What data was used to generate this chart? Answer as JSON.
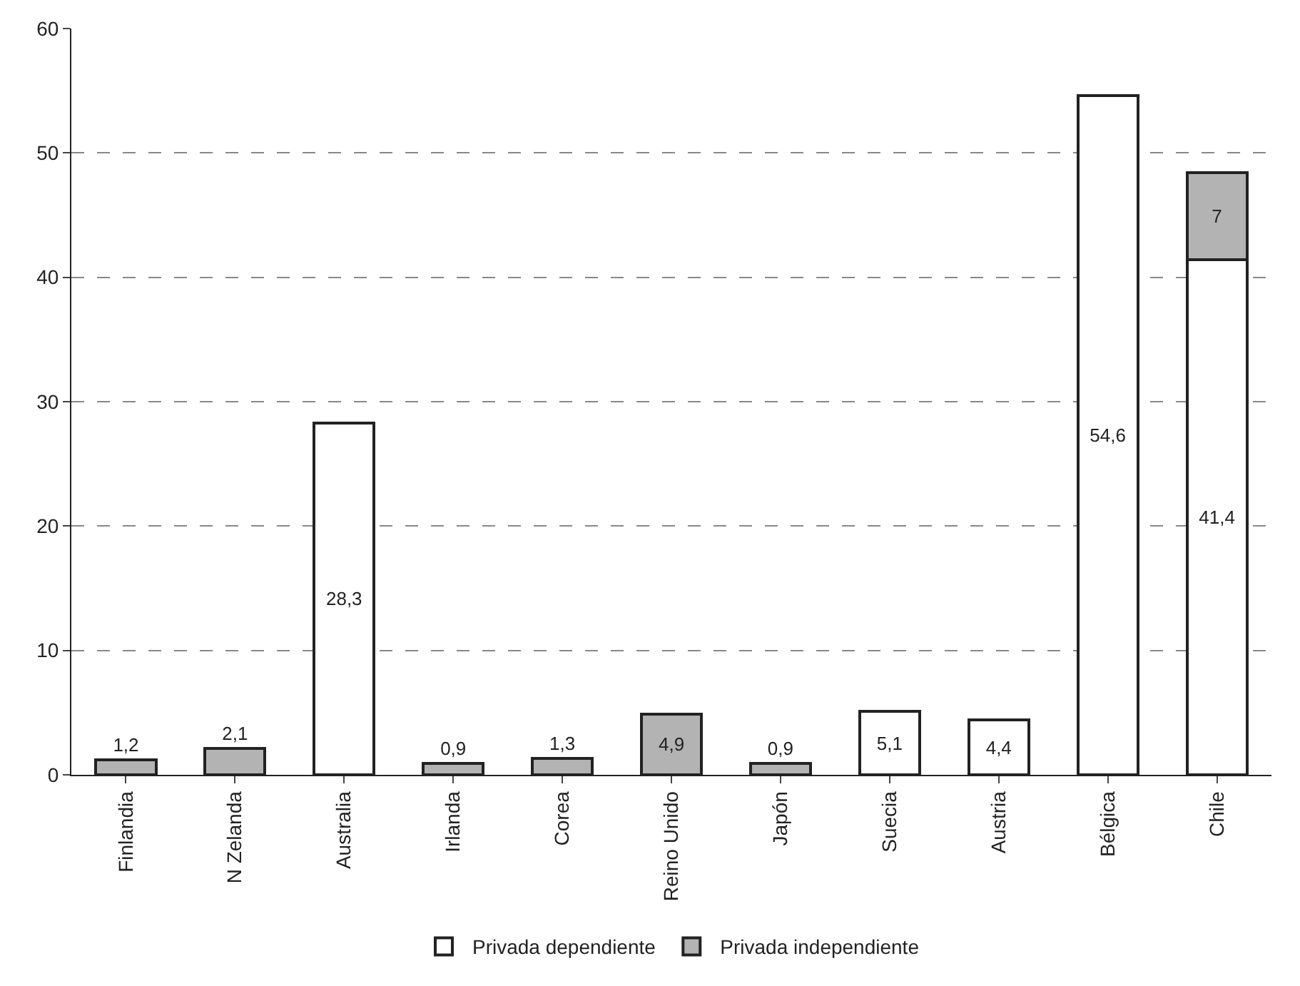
{
  "chart_data": {
    "type": "bar",
    "stacked": true,
    "categories": [
      "Finlandia",
      "N Zelanda",
      "Australia",
      "Irlanda",
      "Corea",
      "Reino Unido",
      "Japón",
      "Suecia",
      "Austria",
      "Bélgica",
      "Chile"
    ],
    "series": [
      {
        "name": "Privada dependiente",
        "color": "#ffffff",
        "values": [
          null,
          null,
          28.3,
          null,
          null,
          null,
          null,
          5.1,
          4.4,
          54.6,
          41.4
        ],
        "value_labels": [
          null,
          null,
          "28,3",
          null,
          null,
          null,
          null,
          "5,1",
          "4,4",
          "54,6",
          "41,4"
        ]
      },
      {
        "name": "Privada independiente",
        "color": "#b3b3b3",
        "values": [
          1.2,
          2.1,
          null,
          0.9,
          1.3,
          4.9,
          0.9,
          null,
          null,
          null,
          7
        ],
        "value_labels": [
          "1,2",
          "2,1",
          null,
          "0,9",
          "1,3",
          "4,9",
          "0,9",
          null,
          null,
          null,
          "7"
        ]
      }
    ],
    "ylim": [
      0,
      60
    ],
    "yticks": [
      0,
      10,
      20,
      30,
      40,
      50,
      60
    ],
    "grid": "y",
    "legend": "bottom"
  }
}
